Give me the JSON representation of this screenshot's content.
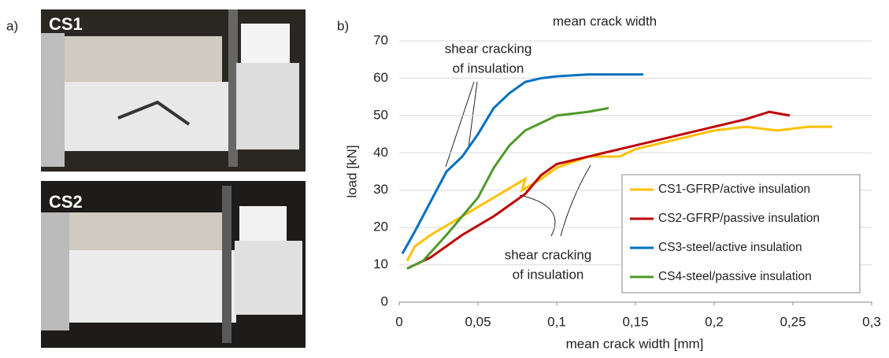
{
  "panel_labels": [
    "a)",
    "b)"
  ],
  "photos": [
    {
      "label": "CS1"
    },
    {
      "label": "CS2"
    }
  ],
  "chart_data": {
    "type": "line",
    "title": "mean crack width",
    "x_label": "mean crack width [mm]",
    "y_label": "load [kN]",
    "xlim": [
      0,
      0.3
    ],
    "ylim": [
      0,
      70
    ],
    "xticks": [
      0,
      {
        "value": 0.05,
        "label": "0,05"
      },
      {
        "value": 0.1,
        "label": "0,1"
      },
      {
        "value": 0.15,
        "label": "0,15"
      },
      {
        "value": 0.2,
        "label": "0,2"
      },
      {
        "value": 0.25,
        "label": "0,25"
      },
      {
        "value": 0.3,
        "label": "0,3"
      }
    ],
    "yticks": [
      0,
      10,
      20,
      30,
      40,
      50,
      60,
      70
    ],
    "grid": true,
    "legend": "lower right",
    "series": [
      {
        "name": "CS1-GFRP/active insulation",
        "color": "#ffc000",
        "x": [
          0.005,
          0.01,
          0.02,
          0.04,
          0.06,
          0.08,
          0.078,
          0.09,
          0.1,
          0.12,
          0.14,
          0.15,
          0.18,
          0.2,
          0.22,
          0.24,
          0.26,
          0.275
        ],
        "values": [
          11,
          15,
          18,
          23,
          28,
          33,
          30,
          33,
          36,
          39,
          39,
          41,
          44,
          46,
          47,
          46,
          47,
          47
        ]
      },
      {
        "name": "CS2-GFRP/passive insulation",
        "color": "#c00000",
        "x": [
          0.005,
          0.02,
          0.04,
          0.06,
          0.08,
          0.09,
          0.1,
          0.12,
          0.14,
          0.16,
          0.18,
          0.2,
          0.22,
          0.235,
          0.248
        ],
        "values": [
          9,
          12,
          18,
          23,
          29,
          34,
          37,
          39,
          41,
          43,
          45,
          47,
          49,
          51,
          50
        ]
      },
      {
        "name": "CS3-steel/active insulation",
        "color": "#0070c0",
        "x": [
          0.002,
          0.01,
          0.02,
          0.03,
          0.04,
          0.05,
          0.06,
          0.07,
          0.08,
          0.09,
          0.1,
          0.12,
          0.155
        ],
        "values": [
          13,
          19,
          27,
          35,
          39,
          45,
          52,
          56,
          59,
          60,
          60.5,
          61,
          61
        ]
      },
      {
        "name": "CS4-steel/passive insulation",
        "color": "#4e9a2a",
        "x": [
          0.005,
          0.015,
          0.03,
          0.05,
          0.06,
          0.07,
          0.08,
          0.1,
          0.12,
          0.133
        ],
        "values": [
          9,
          11,
          18,
          28,
          36,
          42,
          46,
          50,
          51,
          52
        ]
      }
    ],
    "annotations": [
      {
        "lines": [
          "shear cracking",
          "of insulation"
        ]
      },
      {
        "lines": [
          "shear cracking",
          "of insulation"
        ]
      }
    ]
  }
}
